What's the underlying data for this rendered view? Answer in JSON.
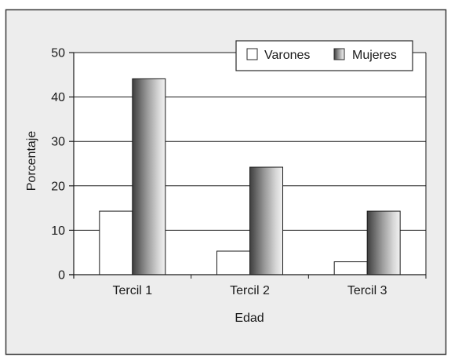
{
  "chart_data": {
    "type": "bar",
    "title": "",
    "xlabel": "Edad",
    "ylabel": "Porcentaje",
    "categories": [
      "Tercil 1",
      "Tercil 2",
      "Tercil 3"
    ],
    "ylim": [
      0,
      50
    ],
    "yticks": [
      0,
      10,
      20,
      30,
      40,
      50
    ],
    "grid": true,
    "legend_position": "top-right",
    "series": [
      {
        "name": "Varones",
        "values": [
          14.3,
          5.3,
          2.9
        ],
        "color": "#ffffff"
      },
      {
        "name": "Mujeres",
        "values": [
          44.1,
          24.2,
          14.3
        ],
        "color": "#6e6e6e"
      }
    ]
  }
}
